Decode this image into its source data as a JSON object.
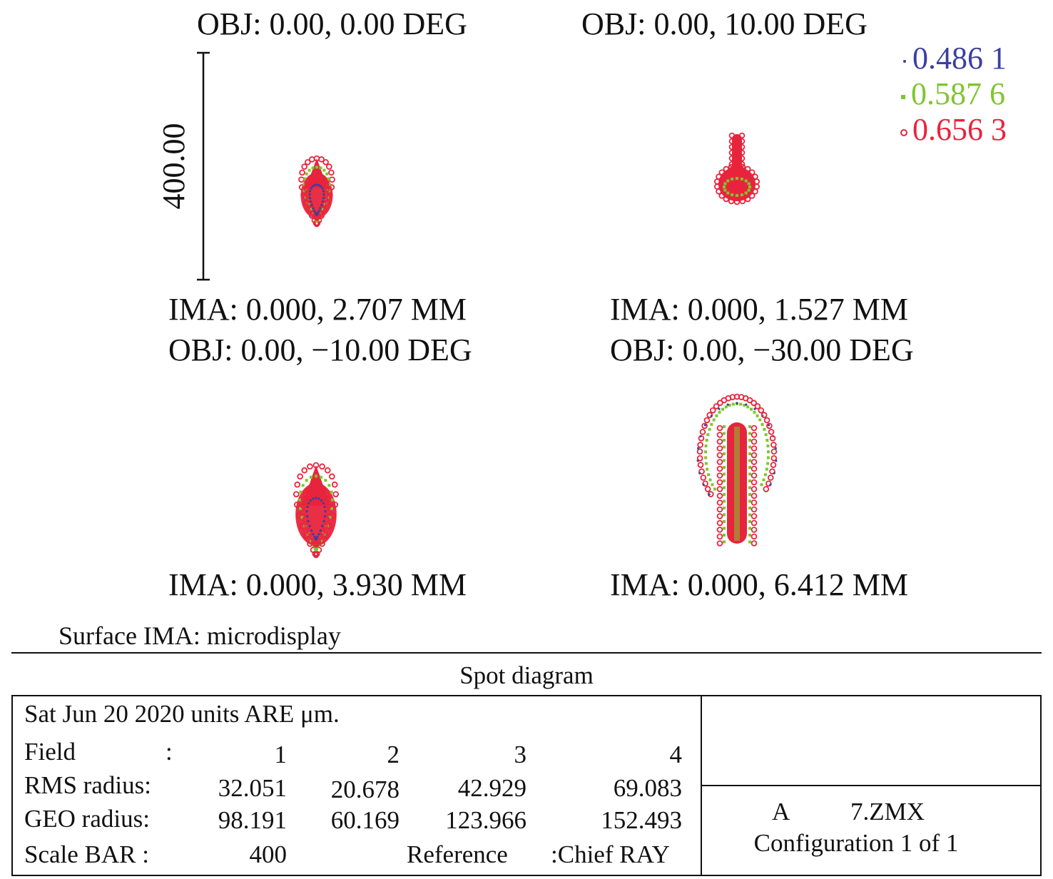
{
  "chart_data": {
    "type": "scatter",
    "subtype": "spot-diagram",
    "title": "Spot diagram",
    "surface": "Surface IMA: microdisplay",
    "scale_bar_label": "400.00",
    "scale_bar_um": 400,
    "wavelengths": [
      {
        "label": "0.486 1",
        "color": "#3b3fa0",
        "marker": "dot"
      },
      {
        "label": "0.587 6",
        "color": "#7fc62e",
        "marker": "square"
      },
      {
        "label": "0.656 3",
        "color": "#e8243c",
        "marker": "circle"
      }
    ],
    "fields": [
      {
        "obj": "OBJ: 0.00, 0.00 DEG",
        "ima": "IMA: 0.000, 2.707 MM",
        "shape": "drop",
        "rms_um": 32.051,
        "geo_um": 98.191
      },
      {
        "obj": "OBJ: 0.00, 10.00 DEG",
        "ima": "IMA: 0.000, 1.527 MM",
        "shape": "bulb",
        "rms_um": 20.678,
        "geo_um": 60.169
      },
      {
        "obj": "OBJ: 0.00, −10.00 DEG",
        "ima": "IMA: 0.000, 3.930 MM",
        "shape": "drop",
        "rms_um": 42.929,
        "geo_um": 123.966
      },
      {
        "obj": "OBJ: 0.00, −30.00 DEG",
        "ima": "IMA: 0.000, 6.412 MM",
        "shape": "comet",
        "rms_um": 69.083,
        "geo_um": 152.493
      }
    ]
  },
  "table": {
    "date_line": "Sat Jun 20 2020 units ARE μm.",
    "field_label": "Field",
    "colon": ":",
    "field_numbers": [
      "1",
      "2",
      "3",
      "4"
    ],
    "rms_label": "RMS radius:",
    "rms_values": [
      "32.051",
      "20.678",
      "42.929",
      "69.083"
    ],
    "geo_label": "GEO radius:",
    "geo_values": [
      "98.191",
      "60.169",
      "123.966",
      "152.493"
    ],
    "scale_label": "Scale BAR :",
    "scale_value": "400",
    "reference_label": "Reference",
    "reference_value": ":Chief RAY",
    "file_letter": "A",
    "file_name": "7.ZMX",
    "configuration": "Configuration 1 of 1"
  }
}
